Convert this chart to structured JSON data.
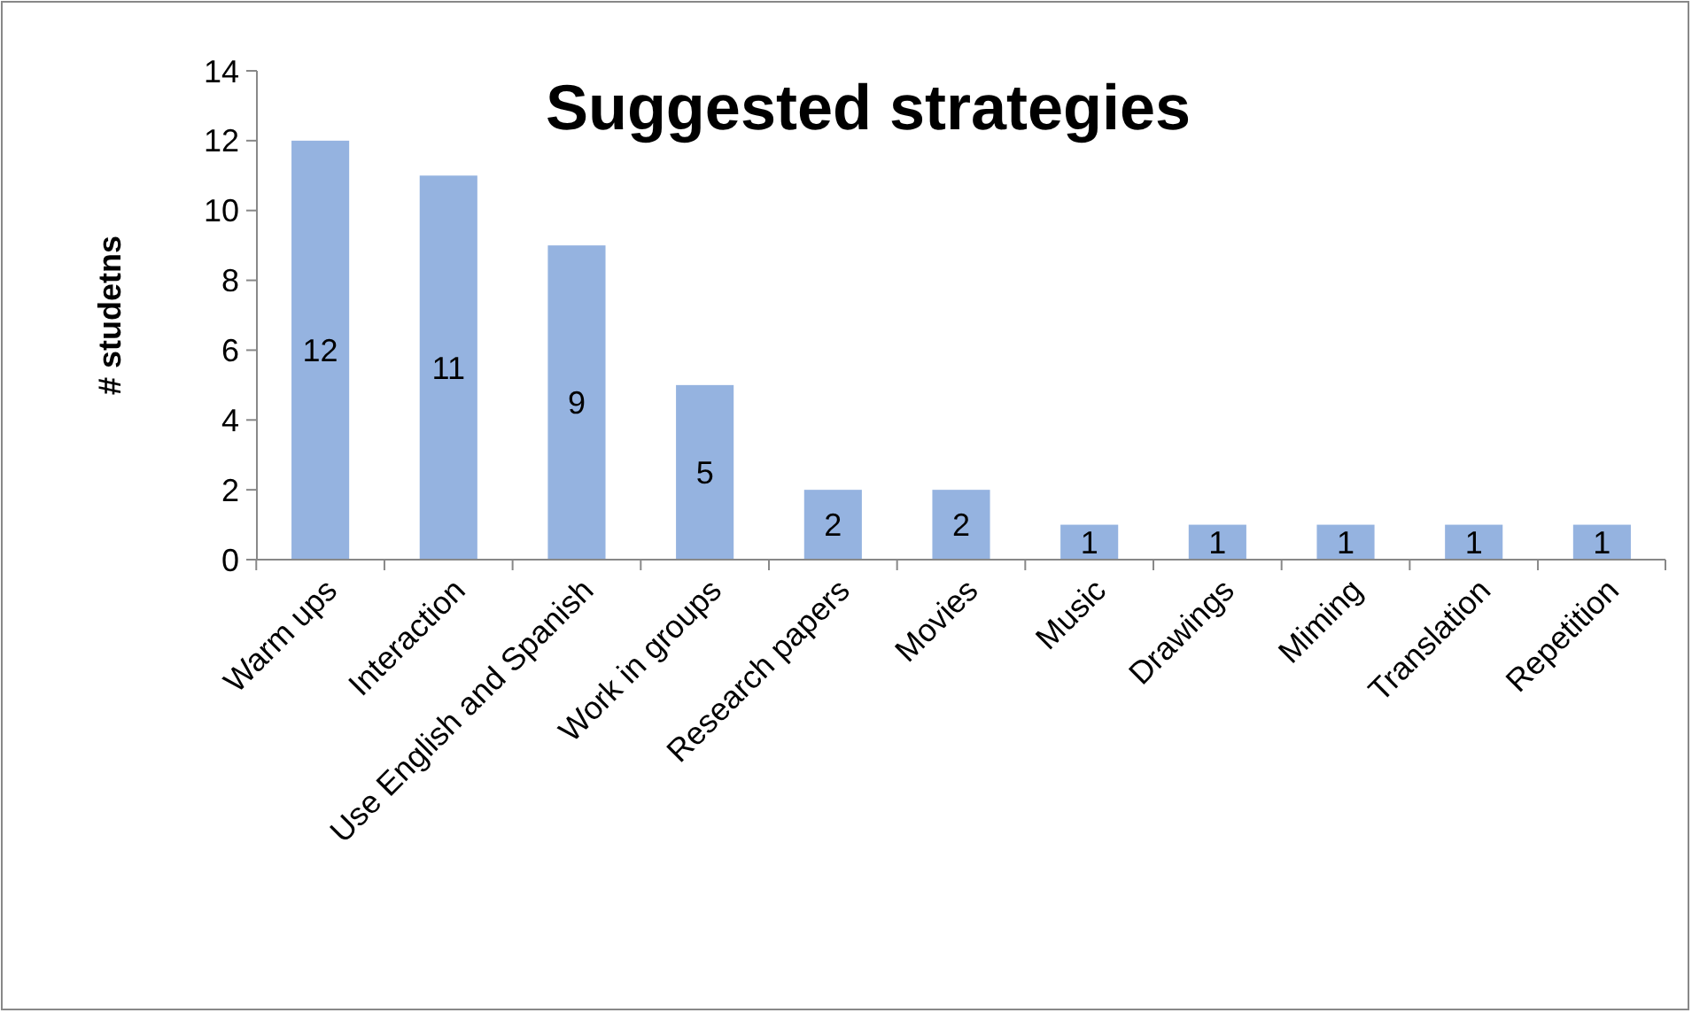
{
  "chart_data": {
    "type": "bar",
    "title": "Suggested strategies",
    "ylabel": "# studetns",
    "categories": [
      "Warm ups",
      "Interaction",
      "Use English and Spanish",
      "Work in groups",
      "Research papers",
      "Movies",
      "Music",
      "Drawings",
      "Miming",
      "Translation",
      "Repetition"
    ],
    "values": [
      12,
      11,
      9,
      5,
      2,
      2,
      1,
      1,
      1,
      1,
      1
    ],
    "color": "#95b3e0",
    "ylim": [
      0,
      14
    ],
    "yticks": [
      0,
      2,
      4,
      6,
      8,
      10,
      12,
      14
    ],
    "data_labels": true,
    "grid": false
  }
}
